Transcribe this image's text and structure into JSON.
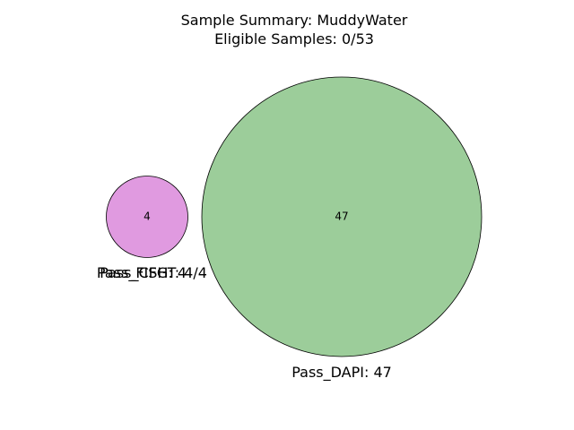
{
  "title": {
    "line1": "Sample Summary: MuddyWater",
    "line2": "Eligible Samples: 0/53"
  },
  "sets": [
    {
      "id": "pass-dapi",
      "label": "Pass_DAPI: 47",
      "count": "47",
      "color": "#9ccd9a"
    },
    {
      "id": "pass-fish",
      "label": "Pass_FISH: 4",
      "count": "4",
      "color": "#e09ae0"
    },
    {
      "id": "pass-cfgt",
      "label": "Pass_CFGT: 4/4",
      "count": "",
      "color": "#e09ae0"
    }
  ]
}
